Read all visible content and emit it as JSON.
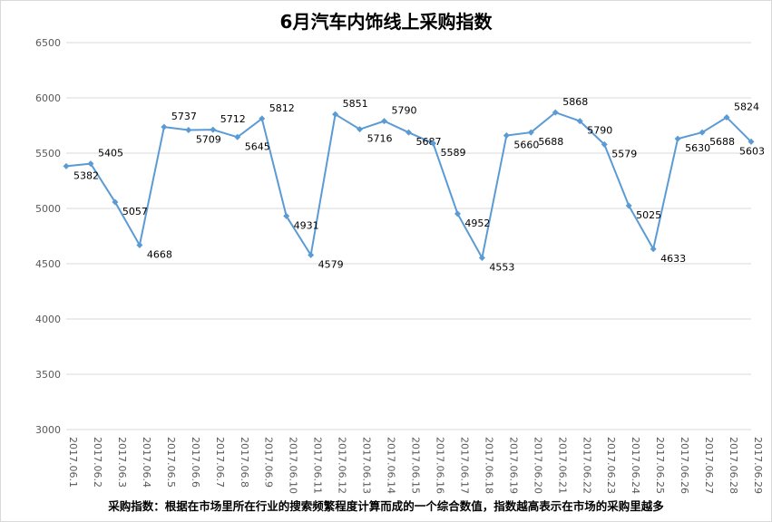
{
  "chart_data": {
    "type": "line",
    "title": "6月汽车内饰线上采购指数",
    "footnote": "采购指数：根据在市场里所在行业的搜索频繁程度计算而成的一个综合数值，指数越高表示在市场的采购里越多",
    "categories": [
      "2017.06.1",
      "2017.06.2",
      "2017.06.3",
      "2017.06.4",
      "2017.06.5",
      "2017.06.6",
      "2017.06.7",
      "2017.06.8",
      "2017.06.9",
      "2017.06.10",
      "2017.06.11",
      "2017.06.12",
      "2017.06.13",
      "2017.06.14",
      "2017.06.15",
      "2017.06.16",
      "2017.06.17",
      "2017.06.18",
      "2017.06.19",
      "2017.06.20",
      "2017.06.21",
      "2017.06.22",
      "2017.06.23",
      "2017.06.24",
      "2017.06.25",
      "2017.06.26",
      "2017.06.27",
      "2017.06.28",
      "2017.06.29"
    ],
    "values": [
      5382,
      5405,
      5057,
      4668,
      5737,
      5709,
      5712,
      5645,
      5812,
      4931,
      4579,
      5851,
      5716,
      5790,
      5687,
      5589,
      4952,
      4553,
      5660,
      5688,
      5868,
      5790,
      5579,
      5025,
      4633,
      5630,
      5688,
      5824,
      5603
    ],
    "ylim": [
      3000,
      6500
    ],
    "yticks": [
      "3000",
      "3500",
      "4000",
      "4500",
      "5000",
      "5500",
      "6000",
      "6500"
    ],
    "grid": true,
    "line_color": "#5b9bd5",
    "grid_color": "#d9d9d9"
  }
}
